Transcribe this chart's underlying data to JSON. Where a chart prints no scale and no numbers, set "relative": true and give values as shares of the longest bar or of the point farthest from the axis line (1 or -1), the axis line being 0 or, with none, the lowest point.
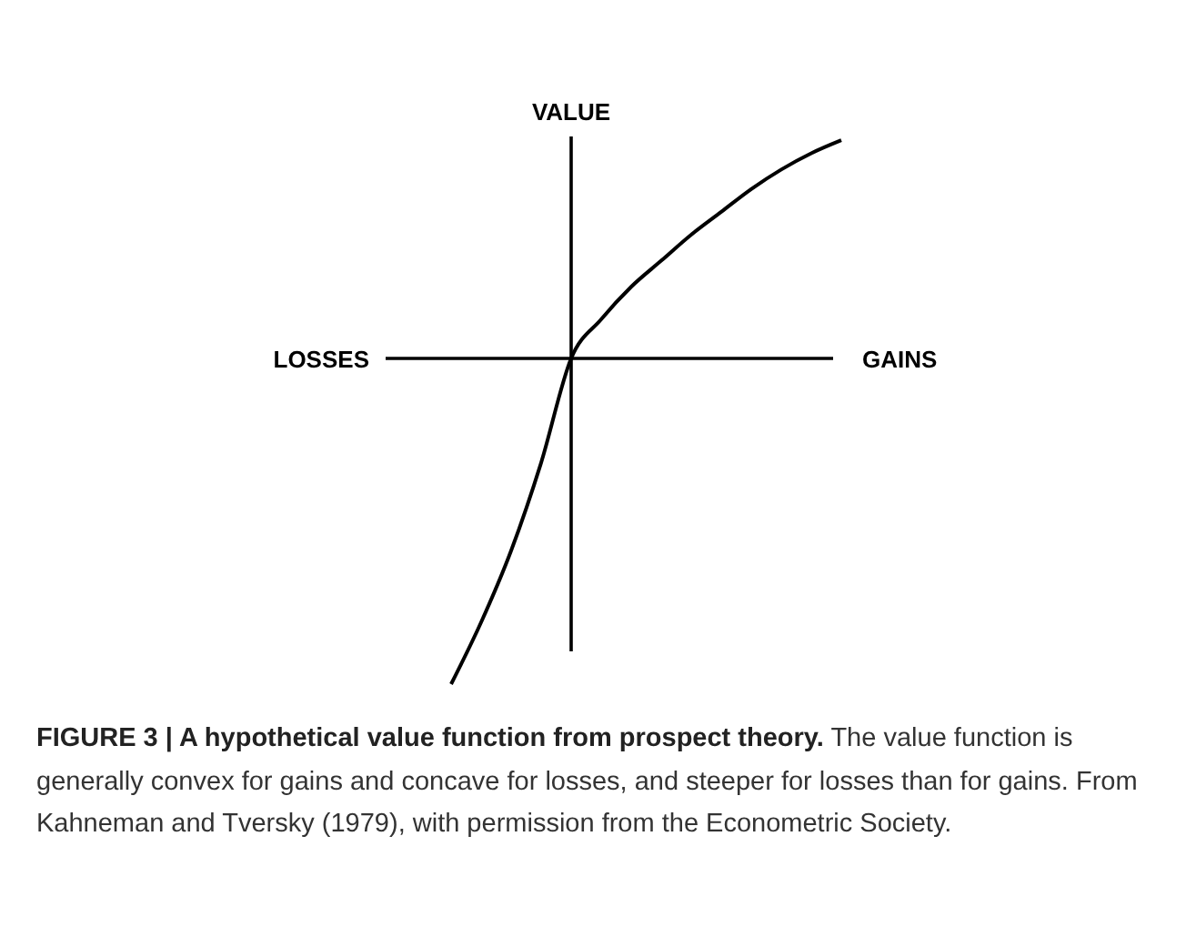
{
  "chart_data": {
    "type": "line",
    "relative": true,
    "title": "FIGURE 3 | A hypothetical value function from prospect theory.",
    "ylabel": "VALUE",
    "annotations": [
      "LOSSES",
      "GAINS",
      "The value function is generally convex for gains and concave for losses, and steeper for losses than for gains. From Kahneman and Tversky (1979), with permission from the Econometric Society."
    ],
    "categories": [
      null,
      null,
      null,
      null,
      null,
      null,
      null,
      null,
      null,
      null,
      null,
      null,
      null,
      null
    ],
    "series": [
      {
        "color": "#000000",
        "values": [
          -1,
          -0.81,
          -0.59,
          -0.32,
          0,
          0.12,
          0.22,
          0.3,
          0.38,
          0.45,
          0.52,
          0.58,
          0.63,
          0.67
        ]
      }
    ],
    "marker": "none",
    "line_style": "solid"
  }
}
